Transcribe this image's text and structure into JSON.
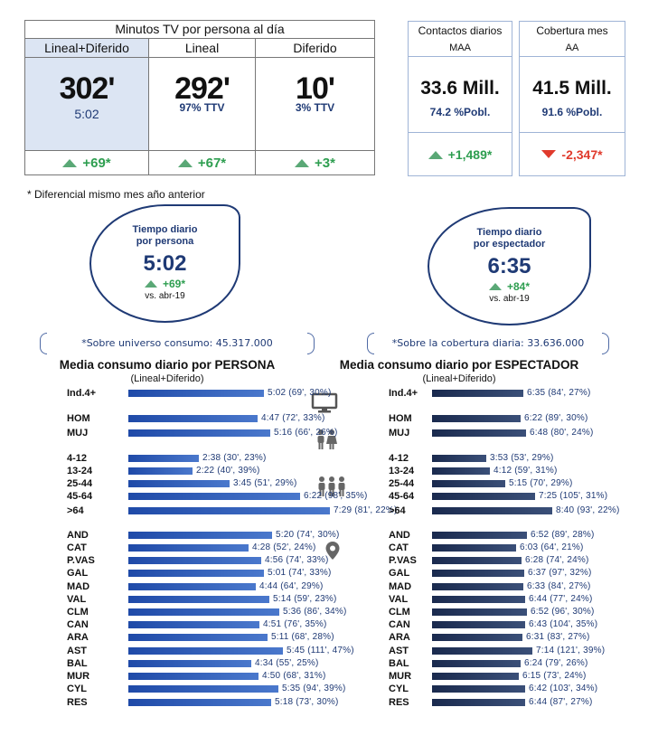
{
  "tv_table": {
    "title": "Minutos TV por persona al día",
    "columns": [
      {
        "header": "Lineal+Diferido",
        "value": "302'",
        "sub": "5:02",
        "diff": "+69*"
      },
      {
        "header": "Lineal",
        "value": "292'",
        "sub": "97% TTV",
        "diff": "+67*"
      },
      {
        "header": "Diferido",
        "value": "10'",
        "sub": "3% TTV",
        "diff": "+3*"
      }
    ]
  },
  "contactos": {
    "title": "Contactos diarios",
    "sub": "MAA",
    "value": "33.6 Mill.",
    "pct": "74.2 %Pobl.",
    "diff": "+1,489*"
  },
  "cobertura": {
    "title": "Cobertura mes",
    "sub": "AA",
    "value": "41.5 Mill.",
    "pct": "91.6 %Pobl.",
    "diff": "-2,347*"
  },
  "footnote": "* Diferencial mismo mes año anterior",
  "bubble_persona": {
    "caption_line1": "Tiempo diario",
    "caption_line2": "por persona",
    "time": "5:02",
    "diff": "+69*",
    "vs": "vs. abr-19"
  },
  "bubble_espectador": {
    "caption_line1": "Tiempo diario",
    "caption_line2": "por espectador",
    "time": "6:35",
    "diff": "+84*",
    "vs": "vs. abr-19"
  },
  "universe_left": "*Sobre universo consumo: 45.317.000",
  "universe_right": "*Sobre la cobertura diaria: 33.636.000",
  "colors": {
    "persona_bar": "#2f5fb8",
    "espectador_bar": "#27375e",
    "positive": "#2e9e50",
    "negative": "#e03a2c",
    "navy": "#1f3a75"
  },
  "chart_data": [
    {
      "type": "bar",
      "orientation": "horizontal",
      "title": "Media consumo diario por PERSONA",
      "subtitle": "(Lineal+Diferido)",
      "unit": "minutes",
      "categories": [
        "Ind.4+",
        "HOM",
        "MUJ",
        "4-12",
        "13-24",
        "25-44",
        "45-64",
        ">64",
        "AND",
        "CAT",
        "P.VAS",
        "GAL",
        "MAD",
        "VAL",
        "CLM",
        "CAN",
        "ARA",
        "AST",
        "BAL",
        "MUR",
        "CYL",
        "RES"
      ],
      "values": [
        302,
        287,
        316,
        158,
        142,
        225,
        382,
        449,
        320,
        268,
        296,
        301,
        284,
        314,
        336,
        291,
        311,
        345,
        274,
        290,
        335,
        318
      ],
      "labels": [
        "5:02 (69', 30%)",
        "4:47 (72', 33%)",
        "5:16 (66', 26%)",
        "2:38 (30', 23%)",
        "2:22 (40', 39%)",
        "3:45 (51', 29%)",
        "6:22 (98', 35%)",
        "7:29 (81', 22%)",
        "5:20 (74', 30%)",
        "4:28 (52', 24%)",
        "4:56 (74', 33%)",
        "5:01 (74', 33%)",
        "4:44 (64', 29%)",
        "5:14 (59', 23%)",
        "5:36 (86', 34%)",
        "4:51 (76', 35%)",
        "5:11 (68', 28%)",
        "5:45 (111', 47%)",
        "4:34 (55', 25%)",
        "4:50 (68', 31%)",
        "5:35 (94', 39%)",
        "5:18 (73', 30%)"
      ]
    },
    {
      "type": "bar",
      "orientation": "horizontal",
      "title": "Media consumo diario por ESPECTADOR",
      "subtitle": "(Lineal+Diferido)",
      "unit": "minutes",
      "categories": [
        "Ind.4+",
        "HOM",
        "MUJ",
        "4-12",
        "13-24",
        "25-44",
        "45-64",
        ">64",
        "AND",
        "CAT",
        "P.VAS",
        "GAL",
        "MAD",
        "VAL",
        "CLM",
        "CAN",
        "ARA",
        "AST",
        "BAL",
        "MUR",
        "CYL",
        "RES"
      ],
      "values": [
        395,
        382,
        408,
        233,
        252,
        315,
        445,
        520,
        412,
        363,
        388,
        397,
        393,
        404,
        412,
        403,
        391,
        434,
        384,
        375,
        402,
        404
      ],
      "labels": [
        "6:35 (84', 27%)",
        "6:22 (89', 30%)",
        "6:48 (80', 24%)",
        "3:53 (53', 29%)",
        "4:12 (59', 31%)",
        "5:15 (70', 29%)",
        "7:25 (105', 31%)",
        "8:40 (93', 22%)",
        "6:52 (89', 28%)",
        "6:03 (64', 21%)",
        "6:28 (74', 24%)",
        "6:37 (97', 32%)",
        "6:33 (84', 27%)",
        "6:44 (77', 24%)",
        "6:52 (96', 30%)",
        "6:43 (104', 35%)",
        "6:31 (83', 27%)",
        "7:14 (121', 39%)",
        "6:24 (79', 26%)",
        "6:15 (73', 24%)",
        "6:42 (103', 34%)",
        "6:44 (87', 27%)"
      ]
    }
  ]
}
